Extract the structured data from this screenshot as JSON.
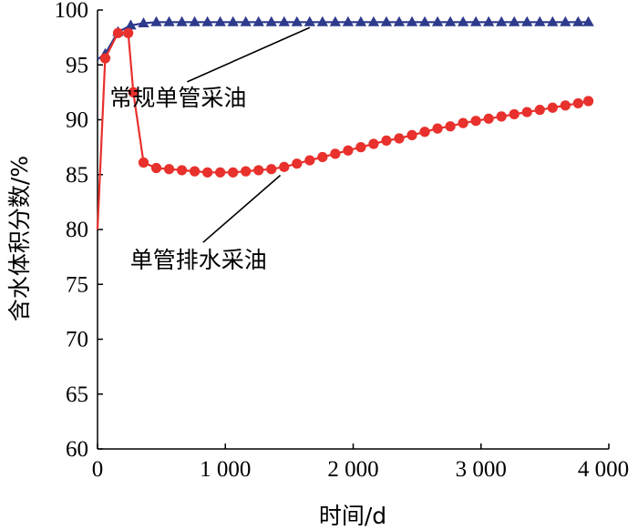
{
  "chart_data": {
    "type": "line",
    "title": "",
    "xlabel": "时间/d",
    "ylabel": "含水体积分数/%",
    "xlim": [
      0,
      4000
    ],
    "ylim": [
      60,
      100
    ],
    "x_ticks": [
      0,
      1000,
      2000,
      3000,
      4000
    ],
    "x_tick_labels": [
      "0",
      "1 000",
      "2 000",
      "3 000",
      "4 000"
    ],
    "y_ticks": [
      60,
      65,
      70,
      75,
      80,
      85,
      90,
      95,
      100
    ],
    "y_tick_labels": [
      "60",
      "65",
      "70",
      "75",
      "80",
      "85",
      "90",
      "95",
      "100"
    ],
    "grid": false,
    "legend": "none",
    "series": [
      {
        "name": "常规单管采油",
        "color": "#2e3a8c",
        "marker": "triangle",
        "x": [
          0,
          60,
          160,
          260,
          360,
          460,
          560,
          660,
          760,
          860,
          960,
          1060,
          1160,
          1260,
          1360,
          1460,
          1560,
          1660,
          1760,
          1860,
          1960,
          2060,
          2160,
          2260,
          2360,
          2460,
          2560,
          2660,
          2760,
          2860,
          2960,
          3060,
          3160,
          3260,
          3360,
          3460,
          3560,
          3660,
          3760,
          3840
        ],
        "y": [
          95.5,
          96.0,
          98.0,
          98.6,
          98.8,
          98.9,
          98.9,
          98.9,
          98.9,
          98.9,
          98.9,
          98.9,
          98.9,
          98.9,
          98.9,
          98.9,
          98.9,
          98.9,
          98.9,
          98.9,
          98.9,
          98.9,
          98.9,
          98.9,
          98.9,
          98.9,
          98.9,
          98.9,
          98.9,
          98.9,
          98.9,
          98.9,
          98.9,
          98.9,
          98.9,
          98.9,
          98.9,
          98.9,
          98.9,
          98.9
        ],
        "marker_from_index": 1
      },
      {
        "name": "单管排水采油",
        "color": "#e8302c",
        "marker": "circle",
        "x": [
          0,
          60,
          160,
          240,
          280,
          360,
          460,
          560,
          660,
          760,
          860,
          960,
          1060,
          1160,
          1260,
          1360,
          1460,
          1560,
          1660,
          1760,
          1860,
          1960,
          2060,
          2160,
          2260,
          2360,
          2460,
          2560,
          2660,
          2760,
          2860,
          2960,
          3060,
          3160,
          3260,
          3360,
          3460,
          3560,
          3660,
          3760,
          3840
        ],
        "y": [
          80.0,
          95.6,
          97.9,
          97.9,
          92.5,
          86.1,
          85.6,
          85.5,
          85.4,
          85.3,
          85.2,
          85.2,
          85.2,
          85.3,
          85.4,
          85.5,
          85.7,
          86.0,
          86.3,
          86.6,
          86.9,
          87.2,
          87.5,
          87.8,
          88.1,
          88.3,
          88.6,
          88.9,
          89.2,
          89.4,
          89.7,
          89.9,
          90.1,
          90.3,
          90.5,
          90.7,
          90.9,
          91.1,
          91.3,
          91.5,
          91.7
        ],
        "marker_from_index": 1
      }
    ],
    "annotations": [
      {
        "text": "常规单管采油",
        "target_series": 0,
        "target_x": 1660,
        "target_y": 98.9,
        "text_x": 630,
        "text_y": 91.3
      },
      {
        "text": "单管排水采油",
        "target_series": 1,
        "target_x": 1430,
        "target_y": 85.6,
        "text_x": 790,
        "text_y": 76.5
      }
    ]
  }
}
